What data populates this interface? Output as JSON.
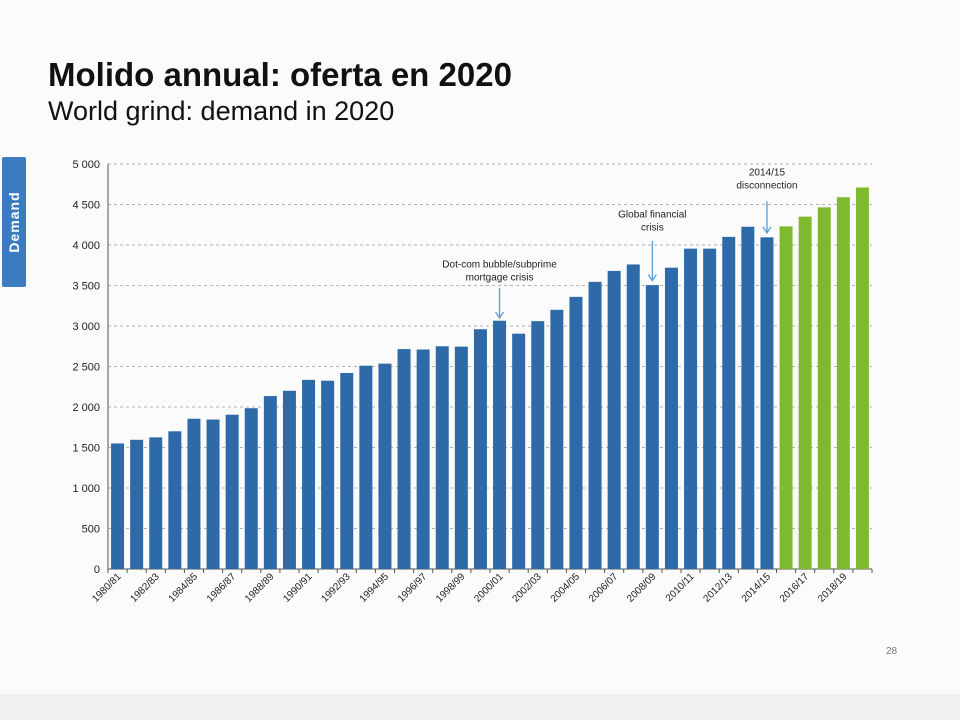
{
  "slide": {
    "title": "Molido annual: oferta en 2020",
    "subtitle": "World grind: demand in 2020",
    "side_label": "Demand",
    "page_number": "28"
  },
  "chart_data": {
    "type": "bar",
    "title": "",
    "xlabel": "",
    "ylabel": "",
    "ylim": [
      0,
      5000
    ],
    "y_ticks": [
      0,
      500,
      1000,
      1500,
      2000,
      2500,
      3000,
      3500,
      4000,
      4500,
      5000
    ],
    "y_tick_labels": [
      "0",
      "500",
      "1 000",
      "1 500",
      "2 000",
      "2 500",
      "3 000",
      "3 500",
      "4 000",
      "4 500",
      "5 000"
    ],
    "grid": "horizontal dashed",
    "categories": [
      "1980/81",
      "1981/82",
      "1982/83",
      "1983/84",
      "1984/85",
      "1985/86",
      "1986/87",
      "1987/88",
      "1988/89",
      "1989/90",
      "1990/91",
      "1991/92",
      "1992/93",
      "1993/94",
      "1994/95",
      "1995/96",
      "1996/97",
      "1997/98",
      "1998/99",
      "1999/00",
      "2000/01",
      "2001/02",
      "2002/03",
      "2003/04",
      "2004/05",
      "2005/06",
      "2006/07",
      "2007/08",
      "2008/09",
      "2009/10",
      "2010/11",
      "2011/12",
      "2012/13",
      "2013/14",
      "2014/15",
      "2015/16",
      "2016/17",
      "2017/18",
      "2018/19",
      "2019/20"
    ],
    "x_tick_labels": [
      "1980/81",
      "",
      "1982/83",
      "",
      "1984/85",
      "",
      "1986/87",
      "",
      "1988/89",
      "",
      "1990/91",
      "",
      "1992/93",
      "",
      "1994/95",
      "",
      "1996/97",
      "",
      "1998/99",
      "",
      "2000/01",
      "",
      "2002/03",
      "",
      "2004/05",
      "",
      "2006/07",
      "",
      "2008/09",
      "",
      "2010/11",
      "",
      "2012/13",
      "",
      "2014/15",
      "",
      "2016/17",
      "",
      "2018/19",
      ""
    ],
    "values": [
      1550,
      1595,
      1625,
      1700,
      1855,
      1845,
      1905,
      1985,
      2135,
      2200,
      2335,
      2325,
      2420,
      2510,
      2535,
      2715,
      2710,
      2750,
      2745,
      2960,
      3065,
      2905,
      3060,
      3200,
      3360,
      3545,
      3680,
      3760,
      3505,
      3720,
      3955,
      3955,
      4100,
      4225,
      4095,
      4230,
      4350,
      4465,
      4590,
      4710
    ],
    "colors": {
      "actual": "#2e6aa8",
      "forecast": "#7fba2e"
    },
    "forecast_start_index": 35,
    "annotations": [
      {
        "text": [
          "Dot-com bubble/subprime",
          "mortgage crisis"
        ],
        "category_index": 20,
        "text_y": 3720,
        "arrow_from": 3470,
        "arrow_to": 3100
      },
      {
        "text": [
          "Global  financial",
          "crisis"
        ],
        "category_index": 28,
        "text_y": 4340,
        "arrow_from": 4050,
        "arrow_to": 3560
      },
      {
        "text": [
          "2014/15",
          "disconnection"
        ],
        "category_index": 34,
        "text_y": 4860,
        "arrow_from": 4540,
        "arrow_to": 4150
      }
    ]
  }
}
